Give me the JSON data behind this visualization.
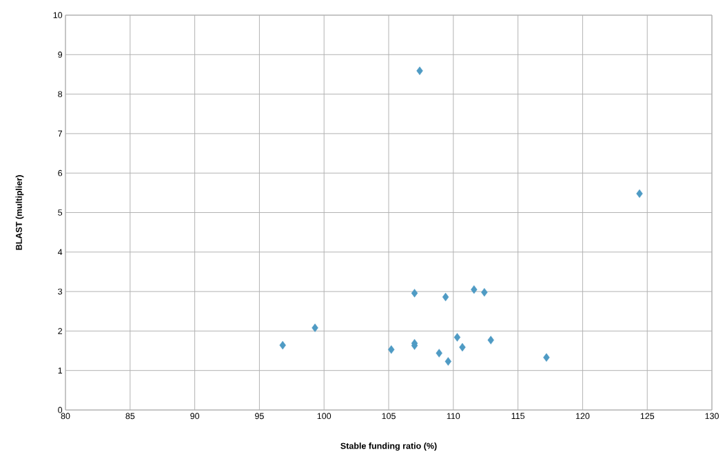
{
  "chart_data": {
    "type": "scatter",
    "xlabel": "Stable funding ratio (%)",
    "ylabel": "BLAST (multiplier)",
    "x": [
      96.8,
      99.3,
      105.2,
      107.0,
      107.0,
      107.0,
      107.4,
      108.9,
      109.4,
      109.6,
      110.3,
      110.7,
      111.6,
      112.4,
      112.9,
      117.2,
      124.4
    ],
    "values": [
      1.64,
      2.08,
      1.53,
      2.96,
      1.69,
      1.63,
      8.59,
      1.44,
      2.86,
      1.23,
      1.84,
      1.59,
      3.05,
      2.98,
      1.77,
      1.33,
      5.48
    ],
    "color": "#4f9bc4",
    "marker": "diamond",
    "grid": true,
    "xlim": [
      80,
      130
    ],
    "xticks": [
      80,
      85,
      90,
      95,
      100,
      105,
      110,
      115,
      120,
      125,
      130
    ],
    "ylim": [
      0,
      10
    ],
    "yticks": [
      0,
      1,
      2,
      3,
      4,
      5,
      6,
      7,
      8,
      9,
      10
    ]
  }
}
